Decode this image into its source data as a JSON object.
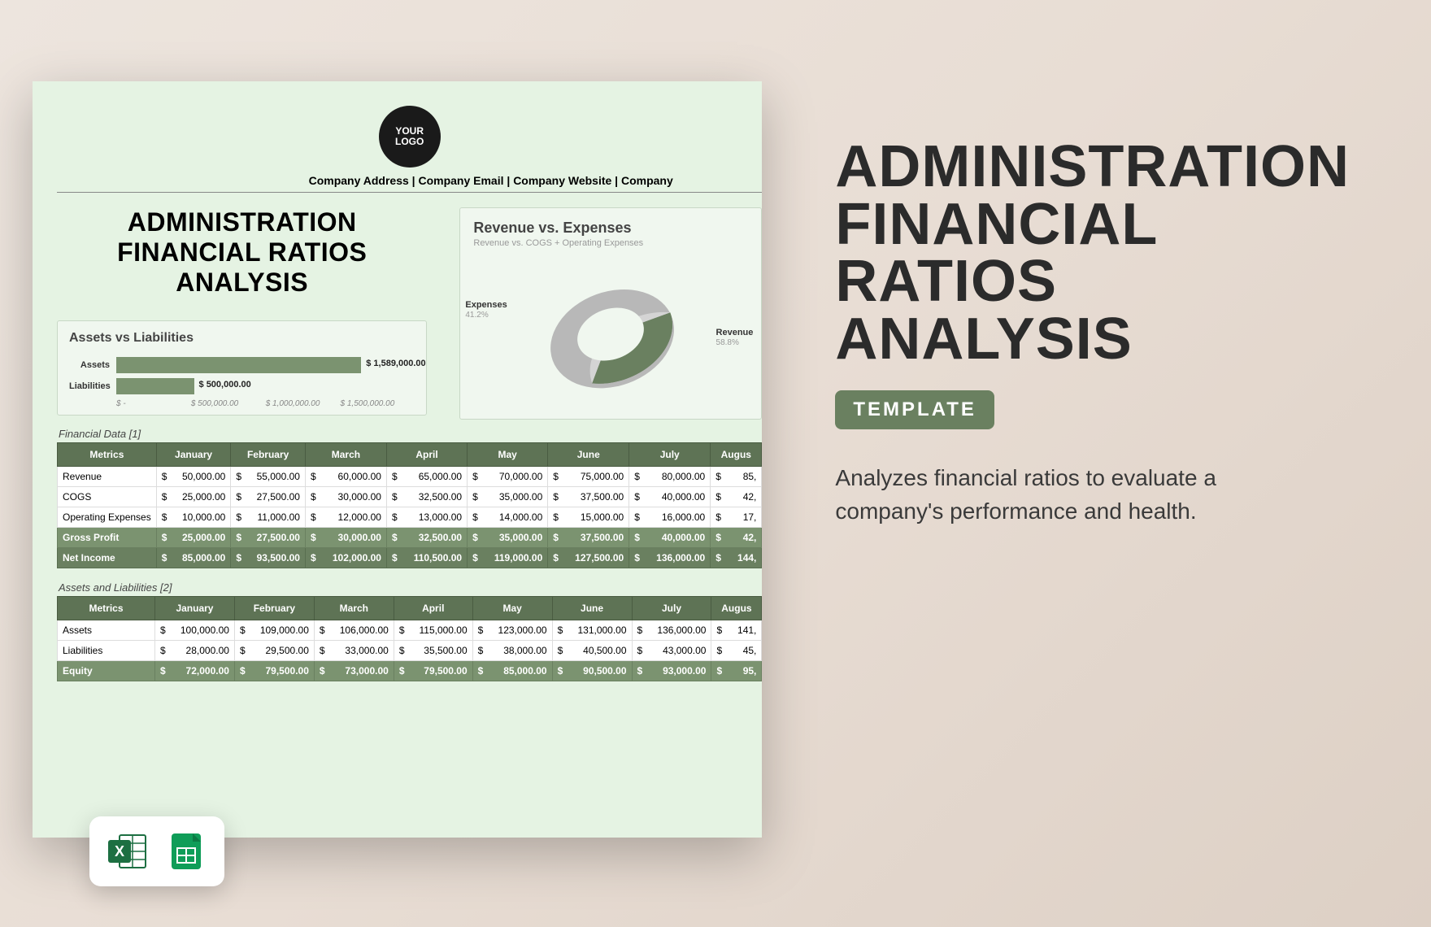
{
  "right": {
    "title_l1": "ADMINISTRATION",
    "title_l2": "FINANCIAL",
    "title_l3": "RATIOS",
    "title_l4": "ANALYSIS",
    "pill": "TEMPLATE",
    "desc": "Analyzes financial ratios to evaluate a company's performance and health."
  },
  "preview": {
    "logo_top": "YOUR",
    "logo_bottom": "LOGO",
    "company_line": "Company Address | Company Email | Company Website | Company",
    "main_title": "ADMINISTRATION FINANCIAL RATIOS ANALYSIS",
    "bar_chart": {
      "title": "Assets vs Liabilities",
      "series": [
        {
          "label": "Assets",
          "value": 1589000,
          "display": "$ 1,589,000.00",
          "width_pct": 82
        },
        {
          "label": "Liabilities",
          "value": 500000,
          "display": "$ 500,000.00",
          "width_pct": 26
        }
      ],
      "axis": [
        "$ -",
        "$ 500,000.00",
        "$ 1,000,000.00",
        "$ 1,500,000.00"
      ],
      "bar_color": "#7b9370",
      "box_bg": "#f0f7ef"
    },
    "donut": {
      "title": "Revenue vs. Expenses",
      "subtitle": "Revenue vs. COGS + Operating Expenses",
      "slices": [
        {
          "name": "Revenue",
          "pct": 58.8,
          "color": "#6a8060"
        },
        {
          "name": "Expenses",
          "pct": 41.2,
          "color": "#d4d4d4"
        }
      ]
    },
    "table1": {
      "label": "Financial Data [1]",
      "columns": [
        "Metrics",
        "January",
        "February",
        "March",
        "April",
        "May",
        "June",
        "July",
        "Augus"
      ],
      "rows": [
        {
          "metric": "Revenue",
          "vals": [
            "50,000.00",
            "55,000.00",
            "60,000.00",
            "65,000.00",
            "70,000.00",
            "75,000.00",
            "80,000.00",
            "85,"
          ]
        },
        {
          "metric": "COGS",
          "vals": [
            "25,000.00",
            "27,500.00",
            "30,000.00",
            "32,500.00",
            "35,000.00",
            "37,500.00",
            "40,000.00",
            "42,"
          ]
        },
        {
          "metric": "Operating Expenses",
          "vals": [
            "10,000.00",
            "11,000.00",
            "12,000.00",
            "13,000.00",
            "14,000.00",
            "15,000.00",
            "16,000.00",
            "17,"
          ]
        },
        {
          "metric": "Gross Profit",
          "hl": true,
          "vals": [
            "25,000.00",
            "27,500.00",
            "30,000.00",
            "32,500.00",
            "35,000.00",
            "37,500.00",
            "40,000.00",
            "42,"
          ]
        },
        {
          "metric": "Net Income",
          "hl2": true,
          "vals": [
            "85,000.00",
            "93,500.00",
            "102,000.00",
            "110,500.00",
            "119,000.00",
            "127,500.00",
            "136,000.00",
            "144,"
          ]
        }
      ]
    },
    "table2": {
      "label": "Assets and Liabilities [2]",
      "columns": [
        "Metrics",
        "January",
        "February",
        "March",
        "April",
        "May",
        "June",
        "July",
        "Augus"
      ],
      "rows": [
        {
          "metric": "Assets",
          "vals": [
            "100,000.00",
            "109,000.00",
            "106,000.00",
            "115,000.00",
            "123,000.00",
            "131,000.00",
            "136,000.00",
            "141,"
          ]
        },
        {
          "metric": "Liabilities",
          "vals": [
            "28,000.00",
            "29,500.00",
            "33,000.00",
            "35,500.00",
            "38,000.00",
            "40,500.00",
            "43,000.00",
            "45,"
          ]
        },
        {
          "metric": "Equity",
          "hl": true,
          "vals": [
            "72,000.00",
            "79,500.00",
            "73,000.00",
            "79,500.00",
            "85,000.00",
            "90,500.00",
            "93,000.00",
            "95,"
          ]
        }
      ]
    }
  },
  "colors": {
    "header_bg": "#5e7355",
    "row_hl": "#7b9370",
    "row_hl2": "#6a8060",
    "preview_bg": "#e5f3e3",
    "page_bg": "#ede5de"
  }
}
